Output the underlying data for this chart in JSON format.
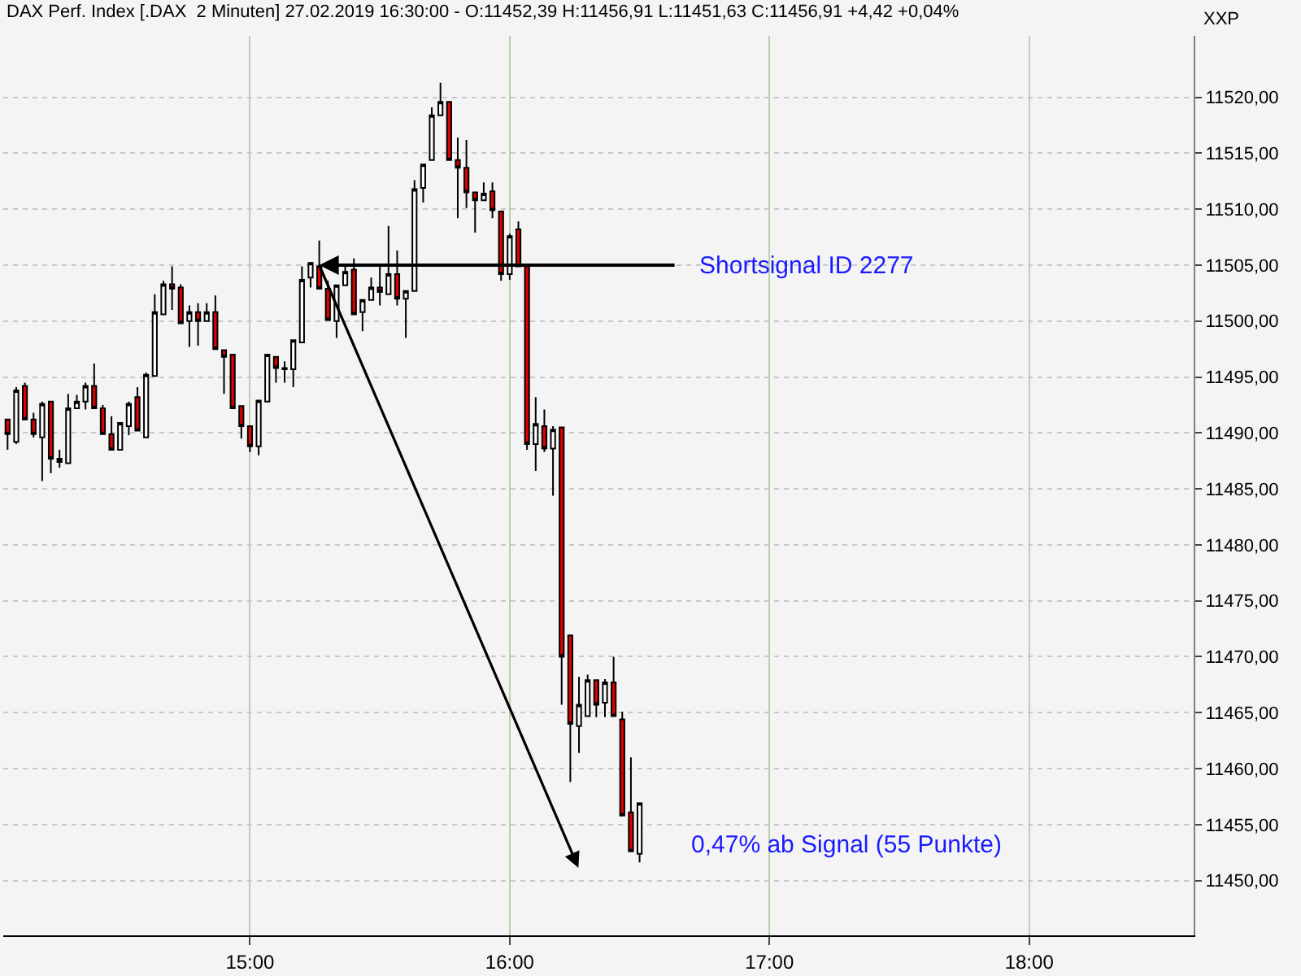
{
  "chart_data": {
    "type": "candlestick",
    "title": "DAX Perf. Index [.DAX  2 Minuten] 27.02.2019 16:30:00 - O:11452,39 H:11456,91 L:11451,63 C:11456,91 +4,42 +0,04%",
    "x": [
      "2019-02-27T14:04",
      "2019-02-27T14:06",
      "2019-02-27T14:08",
      "2019-02-27T14:10",
      "2019-02-27T14:12",
      "2019-02-27T14:14",
      "2019-02-27T14:16",
      "2019-02-27T14:18",
      "2019-02-27T14:20",
      "2019-02-27T14:22",
      "2019-02-27T14:24",
      "2019-02-27T14:26",
      "2019-02-27T14:28",
      "2019-02-27T14:30",
      "2019-02-27T14:32",
      "2019-02-27T14:34",
      "2019-02-27T14:36",
      "2019-02-27T14:38",
      "2019-02-27T14:40",
      "2019-02-27T14:42",
      "2019-02-27T14:44",
      "2019-02-27T14:46",
      "2019-02-27T14:48",
      "2019-02-27T14:50",
      "2019-02-27T14:52",
      "2019-02-27T14:54",
      "2019-02-27T14:56",
      "2019-02-27T14:58",
      "2019-02-27T15:00",
      "2019-02-27T15:02",
      "2019-02-27T15:04",
      "2019-02-27T15:06",
      "2019-02-27T15:08",
      "2019-02-27T15:10",
      "2019-02-27T15:12",
      "2019-02-27T15:14",
      "2019-02-27T15:16",
      "2019-02-27T15:18",
      "2019-02-27T15:20",
      "2019-02-27T15:22",
      "2019-02-27T15:24",
      "2019-02-27T15:26",
      "2019-02-27T15:28",
      "2019-02-27T15:30",
      "2019-02-27T15:32",
      "2019-02-27T15:34",
      "2019-02-27T15:36",
      "2019-02-27T15:38",
      "2019-02-27T15:40",
      "2019-02-27T15:42",
      "2019-02-27T15:44",
      "2019-02-27T15:46",
      "2019-02-27T15:48",
      "2019-02-27T15:50",
      "2019-02-27T15:52",
      "2019-02-27T15:54",
      "2019-02-27T15:56",
      "2019-02-27T15:58",
      "2019-02-27T16:00",
      "2019-02-27T16:02",
      "2019-02-27T16:04",
      "2019-02-27T16:06",
      "2019-02-27T16:08",
      "2019-02-27T16:10",
      "2019-02-27T16:12",
      "2019-02-27T16:14",
      "2019-02-27T16:16",
      "2019-02-27T16:18",
      "2019-02-27T16:20",
      "2019-02-27T16:22",
      "2019-02-27T16:24",
      "2019-02-27T16:26",
      "2019-02-27T16:28",
      "2019-02-27T16:30"
    ],
    "ohlc": [
      [
        11491.2,
        11491.2,
        11488.5,
        11489.9
      ],
      [
        11489.2,
        11494.1,
        11489.0,
        11493.8
      ],
      [
        11494.2,
        11494.5,
        11491.2,
        11491.2
      ],
      [
        11491.2,
        11491.8,
        11489.6,
        11489.9
      ],
      [
        11489.6,
        11492.8,
        11485.7,
        11492.6
      ],
      [
        11492.8,
        11492.8,
        11486.4,
        11487.7
      ],
      [
        11487.7,
        11488.5,
        11486.9,
        11487.4
      ],
      [
        11487.3,
        11493.5,
        11487.3,
        11492.2
      ],
      [
        11492.2,
        11493.4,
        11492.2,
        11492.8
      ],
      [
        11492.8,
        11494.5,
        11492.1,
        11494.2
      ],
      [
        11494.2,
        11496.2,
        11492.2,
        11492.2
      ],
      [
        11492.2,
        11492.5,
        11489.9,
        11489.9
      ],
      [
        11489.9,
        11491.5,
        11488.5,
        11488.5
      ],
      [
        11488.5,
        11490.9,
        11488.5,
        11490.9
      ],
      [
        11490.6,
        11492.8,
        11489.8,
        11492.6
      ],
      [
        11493.2,
        11494.1,
        11490.2,
        11490.2
      ],
      [
        11489.6,
        11495.4,
        11489.6,
        11495.2
      ],
      [
        11495.1,
        11502.4,
        11495.1,
        11500.8
      ],
      [
        11500.6,
        11503.6,
        11500.6,
        11503.3
      ],
      [
        11503.3,
        11504.9,
        11501.0,
        11502.9
      ],
      [
        11503.0,
        11503.3,
        11499.8,
        11499.8
      ],
      [
        11500.0,
        11501.4,
        11497.7,
        11500.8
      ],
      [
        11500.8,
        11501.6,
        11497.8,
        11500.0
      ],
      [
        11500.0,
        11501.6,
        11500.0,
        11500.8
      ],
      [
        11500.8,
        11502.3,
        11497.5,
        11497.5
      ],
      [
        11497.4,
        11497.4,
        11493.5,
        11496.8
      ],
      [
        11497.0,
        11497.0,
        11492.2,
        11492.2
      ],
      [
        11492.4,
        11492.4,
        11489.5,
        11490.6
      ],
      [
        11490.6,
        11490.6,
        11488.3,
        11488.8
      ],
      [
        11488.8,
        11492.9,
        11488.0,
        11492.9
      ],
      [
        11492.8,
        11497.0,
        11492.8,
        11497.0
      ],
      [
        11496.8,
        11496.8,
        11494.5,
        11495.8
      ],
      [
        11495.7,
        11496.4,
        11494.5,
        11495.8
      ],
      [
        11495.7,
        11498.3,
        11494.1,
        11498.3
      ],
      [
        11498.1,
        11504.9,
        11498.1,
        11503.7
      ],
      [
        11503.9,
        11505.3,
        11503.0,
        11505.2
      ],
      [
        11504.9,
        11507.2,
        11502.9,
        11502.9
      ],
      [
        11502.9,
        11503.6,
        11500.1,
        11500.1
      ],
      [
        11500.0,
        11503.2,
        11498.5,
        11503.2
      ],
      [
        11503.2,
        11504.9,
        11503.2,
        11504.4
      ],
      [
        11504.6,
        11505.6,
        11500.6,
        11500.6
      ],
      [
        11500.8,
        11501.9,
        11499.1,
        11501.9
      ],
      [
        11501.9,
        11503.9,
        11501.9,
        11503.0
      ],
      [
        11503.0,
        11504.9,
        11501.4,
        11502.6
      ],
      [
        11502.4,
        11508.5,
        11502.4,
        11504.2
      ],
      [
        11504.2,
        11506.3,
        11501.4,
        11502.0
      ],
      [
        11502.0,
        11502.7,
        11498.5,
        11502.7
      ],
      [
        11502.7,
        11512.6,
        11502.7,
        11511.8
      ],
      [
        11511.9,
        11514.0,
        11510.6,
        11514.0
      ],
      [
        11514.4,
        11519.1,
        11514.4,
        11518.4
      ],
      [
        11518.4,
        11521.3,
        11518.4,
        11519.6
      ],
      [
        11519.6,
        11519.6,
        11514.4,
        11514.4
      ],
      [
        11514.4,
        11516.4,
        11509.2,
        11513.7
      ],
      [
        11513.7,
        11516.2,
        11510.1,
        11511.5
      ],
      [
        11511.5,
        11511.5,
        11507.9,
        11510.8
      ],
      [
        11510.8,
        11512.4,
        11510.8,
        11511.4
      ],
      [
        11511.6,
        11512.4,
        11509.2,
        11509.9
      ],
      [
        11509.8,
        11509.8,
        11503.6,
        11504.2
      ],
      [
        11504.2,
        11507.8,
        11503.7,
        11507.6
      ],
      [
        11508.2,
        11508.9,
        11504.9,
        11504.9
      ],
      [
        11504.9,
        11504.9,
        11488.5,
        11489.0
      ],
      [
        11489.0,
        11493.2,
        11486.6,
        11490.8
      ],
      [
        11490.6,
        11492.1,
        11488.3,
        11488.6
      ],
      [
        11488.6,
        11490.6,
        11484.4,
        11490.3
      ],
      [
        11490.5,
        11490.5,
        11465.7,
        11470.0
      ],
      [
        11471.9,
        11471.9,
        11458.8,
        11464.0
      ],
      [
        11463.8,
        11468.2,
        11461.4,
        11465.7
      ],
      [
        11464.7,
        11468.4,
        11464.7,
        11467.9
      ],
      [
        11467.9,
        11467.9,
        11464.6,
        11465.7
      ],
      [
        11465.9,
        11468.0,
        11464.6,
        11467.7
      ],
      [
        11467.7,
        11470.0,
        11464.7,
        11464.7
      ],
      [
        11464.4,
        11465.1,
        11455.8,
        11455.8
      ],
      [
        11456.1,
        11461.0,
        11452.6,
        11452.6
      ],
      [
        11452.39,
        11456.91,
        11451.63,
        11456.91
      ]
    ],
    "xlim": [
      "2019-02-27T14:03",
      "2019-02-27T18:38"
    ],
    "xticks": [
      {
        "value": "2019-02-27T15:00",
        "label": "15:00"
      },
      {
        "value": "2019-02-27T16:00",
        "label": "16:00"
      },
      {
        "value": "2019-02-27T17:00",
        "label": "17:00"
      },
      {
        "value": "2019-02-27T18:00",
        "label": "18:00"
      }
    ],
    "ylim": [
      11445.1,
      11525.5
    ],
    "yticks": [
      {
        "value": 11450,
        "label": "11450,00"
      },
      {
        "value": 11455,
        "label": "11455,00"
      },
      {
        "value": 11460,
        "label": "11460,00"
      },
      {
        "value": 11465,
        "label": "11465,00"
      },
      {
        "value": 11470,
        "label": "11470,00"
      },
      {
        "value": 11475,
        "label": "11475,00"
      },
      {
        "value": 11480,
        "label": "11480,00"
      },
      {
        "value": 11485,
        "label": "11485,00"
      },
      {
        "value": 11490,
        "label": "11490,00"
      },
      {
        "value": 11495,
        "label": "11495,00"
      },
      {
        "value": 11500,
        "label": "11500,00"
      },
      {
        "value": 11505,
        "label": "11505,00"
      },
      {
        "value": 11510,
        "label": "11510,00"
      },
      {
        "value": 11515,
        "label": "11515,00"
      },
      {
        "value": 11520,
        "label": "11520,00"
      }
    ],
    "annotations": [
      {
        "text": "Shortsignal ID 2277",
        "x": "2019-02-27T15:16",
        "y": 11505
      },
      "0,47% ab Signal (55 Punkte)",
      "XXP"
    ],
    "grid": true
  }
}
